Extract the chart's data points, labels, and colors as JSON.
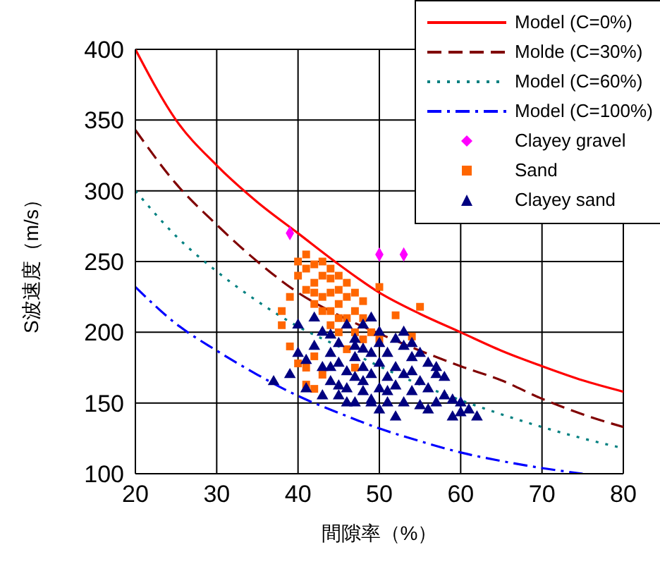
{
  "chart_data": {
    "type": "scatter",
    "xlabel": "間隙率（%）",
    "ylabel": "S波速度（m/s）",
    "xlim": [
      20,
      80
    ],
    "xticks": [
      20,
      30,
      40,
      50,
      60,
      70,
      80
    ],
    "ylim": [
      100,
      400
    ],
    "yticks": [
      100,
      150,
      200,
      250,
      300,
      350,
      400
    ],
    "grid": true,
    "legend": "top right",
    "series": [
      {
        "name": "Model (C=0%)",
        "type": "line",
        "color": "#ff0000",
        "line_style": "solid",
        "marker": "none",
        "x": [
          20,
          25,
          30,
          35,
          40,
          45,
          50,
          55,
          60,
          65,
          70,
          75,
          80
        ],
        "values": [
          400,
          350,
          318,
          292,
          270,
          248,
          228,
          213,
          200,
          187,
          176,
          166,
          158
        ]
      },
      {
        "name": "Molde (C=30%)",
        "type": "line",
        "color": "#800000",
        "line_style": "dashed",
        "marker": "none",
        "x": [
          20,
          25,
          30,
          35,
          40,
          45,
          50,
          55,
          60,
          65,
          70,
          75,
          80
        ],
        "values": [
          343,
          305,
          276,
          250,
          228,
          212,
          199,
          187,
          176,
          166,
          153,
          142,
          133
        ]
      },
      {
        "name": "Model (C=60%)",
        "type": "line",
        "color": "#008080",
        "line_style": "dotted",
        "marker": "none",
        "x": [
          20,
          25,
          30,
          35,
          40,
          45,
          50,
          55,
          60,
          65,
          70,
          75,
          80
        ],
        "values": [
          300,
          268,
          243,
          222,
          204,
          190,
          176,
          163,
          152,
          142,
          133,
          125,
          118
        ]
      },
      {
        "name": "Model (C=100%)",
        "type": "line",
        "color": "#0000ff",
        "line_style": "dashdot",
        "marker": "none",
        "x": [
          20,
          25,
          30,
          35,
          40,
          45,
          50,
          55,
          60,
          65,
          70,
          75
        ],
        "values": [
          232,
          206,
          187,
          170,
          155,
          143,
          132,
          123,
          115,
          109,
          104,
          100
        ]
      },
      {
        "name": "Clayey gravel",
        "type": "scatter",
        "color": "#ff00ff",
        "marker": "diamond",
        "x": [
          39,
          50,
          53
        ],
        "values": [
          270,
          255,
          255
        ]
      },
      {
        "name": "Sand",
        "type": "scatter",
        "color": "#ff6600",
        "marker": "square",
        "x": [
          38,
          39,
          40,
          40,
          41,
          41,
          41,
          38,
          42,
          42,
          42,
          48,
          43,
          43,
          43,
          43,
          44,
          44,
          44,
          44,
          44,
          45,
          45,
          45,
          45,
          45,
          46,
          46,
          46,
          47,
          47,
          47,
          48,
          48,
          49,
          50,
          50,
          52,
          54,
          55,
          41,
          42,
          42,
          46,
          40,
          41,
          43,
          42,
          47,
          39
        ],
        "values": [
          215,
          225,
          240,
          250,
          230,
          245,
          255,
          205,
          220,
          235,
          248,
          210,
          215,
          225,
          240,
          250,
          205,
          215,
          228,
          238,
          245,
          200,
          210,
          220,
          230,
          240,
          210,
          225,
          235,
          200,
          215,
          228,
          195,
          222,
          200,
          232,
          195,
          212,
          197,
          218,
          163,
          183,
          228,
          188,
          178,
          175,
          170,
          160,
          175,
          190
        ]
      },
      {
        "name": "Clayey sand",
        "type": "scatter",
        "color": "#000080",
        "marker": "triangle",
        "x": [
          37,
          39,
          40,
          40,
          41,
          42,
          42,
          43,
          43,
          44,
          44,
          44,
          45,
          45,
          45,
          46,
          46,
          46,
          47,
          47,
          47,
          47,
          48,
          48,
          48,
          48,
          49,
          49,
          49,
          50,
          50,
          50,
          50,
          51,
          51,
          51,
          52,
          52,
          52,
          53,
          53,
          53,
          54,
          54,
          54,
          55,
          55,
          55,
          56,
          56,
          56,
          57,
          57,
          58,
          58,
          59,
          59,
          60,
          60,
          61,
          62,
          43,
          45,
          46,
          48,
          49,
          50,
          51,
          52,
          41,
          44,
          47,
          49,
          53,
          54,
          57
        ],
        "values": [
          165,
          170,
          205,
          185,
          160,
          210,
          190,
          175,
          200,
          165,
          185,
          198,
          155,
          178,
          192,
          160,
          172,
          205,
          150,
          168,
          182,
          195,
          158,
          175,
          188,
          205,
          152,
          170,
          185,
          160,
          178,
          192,
          200,
          150,
          168,
          185,
          195,
          162,
          175,
          190,
          150,
          170,
          182,
          158,
          172,
          185,
          148,
          165,
          178,
          145,
          160,
          175,
          150,
          168,
          155,
          140,
          152,
          143,
          150,
          145,
          140,
          155,
          162,
          150,
          165,
          150,
          145,
          158,
          140,
          180,
          175,
          190,
          210,
          200,
          192,
          170
        ]
      }
    ]
  }
}
